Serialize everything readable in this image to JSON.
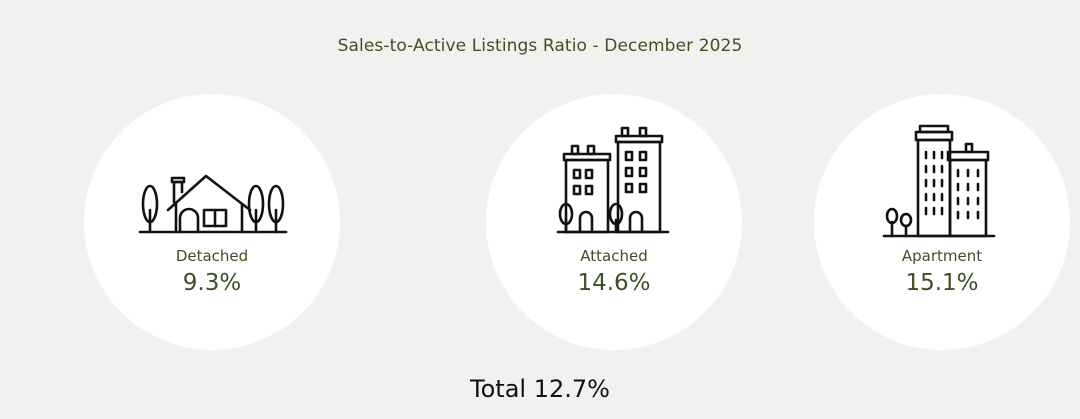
{
  "title": "Sales-to-Active Listings Ratio - December 2025",
  "categories": [
    {
      "label": "Detached",
      "value": "9.3%",
      "icon": "house-icon"
    },
    {
      "label": "Attached",
      "value": "14.6%",
      "icon": "townhouse-icon"
    },
    {
      "label": "Apartment",
      "value": "15.1%",
      "icon": "apartment-building-icon"
    }
  ],
  "total": "Total 12.7%",
  "colors": {
    "background": "#f2f1ef",
    "circle": "#ffffff",
    "accent_text": "#3e5022",
    "icon_stroke": "#111111"
  }
}
